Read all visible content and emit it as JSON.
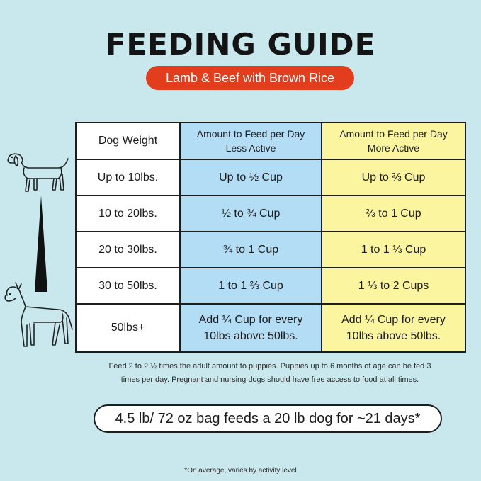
{
  "title": "FEEDING GUIDE",
  "subtitle": "Lamb & Beef with Brown Rice",
  "table": {
    "headers": [
      {
        "line1": "Dog Weight",
        "line2": ""
      },
      {
        "line1": "Amount to Feed per Day",
        "line2": "Less Active"
      },
      {
        "line1": "Amount to Feed per Day",
        "line2": "More Active"
      }
    ],
    "rows": [
      {
        "weight": "Up to 10lbs.",
        "less": "Up to ½ Cup",
        "more": "Up to ⅔ Cup"
      },
      {
        "weight": "10 to 20lbs.",
        "less": "½ to ¾ Cup",
        "more": "⅔ to 1 Cup"
      },
      {
        "weight": "20 to 30lbs.",
        "less": "¾ to 1 Cup",
        "more": "1 to 1 ⅓ Cup"
      },
      {
        "weight": "30 to 50lbs.",
        "less": "1 to 1 ⅔ Cup",
        "more": "1 ⅓ to 2 Cups"
      }
    ],
    "last_row": {
      "weight": "50lbs+",
      "less_line1": "Add ¼ Cup for every",
      "less_line2": "10lbs above 50lbs.",
      "more_line1": "Add ¼ Cup for every",
      "more_line2": "10lbs above 50lbs."
    }
  },
  "note_line1": "Feed 2 to 2 ½ times the adult amount to puppies. Puppies up to 6 months of age can be fed 3",
  "note_line2": "times per day. Pregnant and nursing dogs should have free access to food at all times.",
  "bag_info": "4.5 lb/ 72 oz bag feeds a 20 lb dog for ~21 days*",
  "footnote": "*On average, varies by activity level",
  "icons": [
    "small-dog-icon",
    "size-scale-wedge-icon",
    "large-dog-icon"
  ],
  "colors": {
    "background": "#c8e8ee",
    "accent_red": "#e23d1c",
    "less_active_blue": "#b3dcf5",
    "more_active_yellow": "#fbf5a0"
  }
}
